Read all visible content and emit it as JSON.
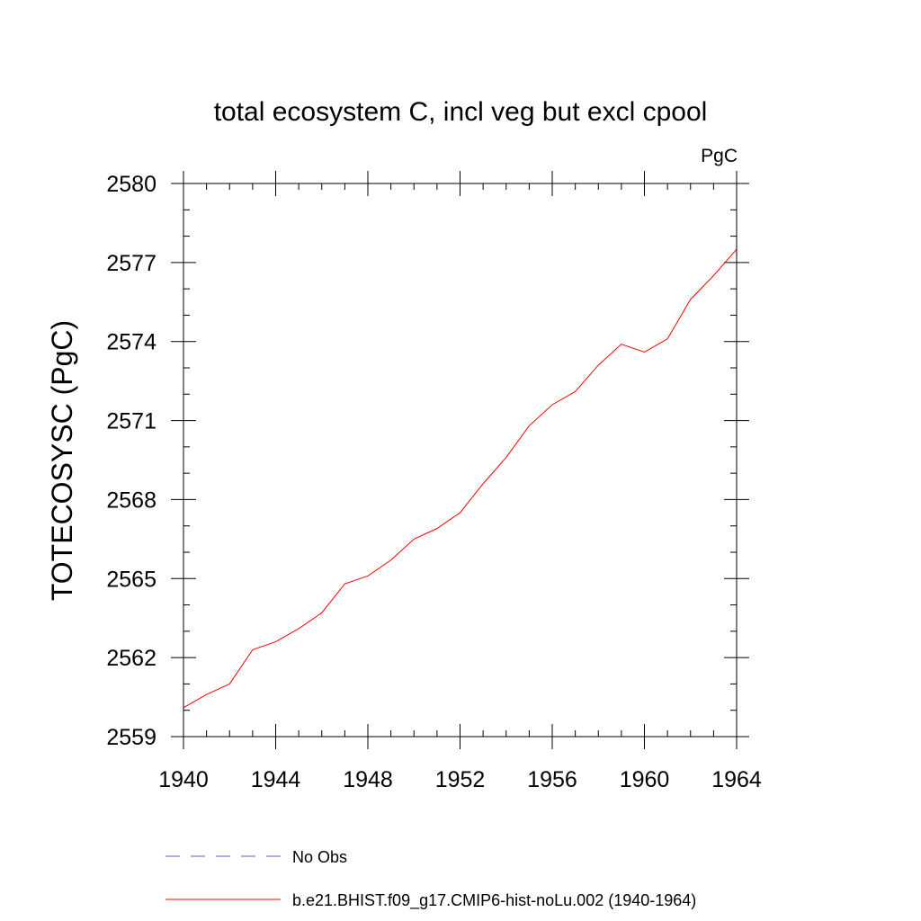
{
  "chart_data": {
    "type": "line",
    "title": "total ecosystem C, incl veg but excl cpool",
    "units": "PgC",
    "ylabel": "TOTECOSYSC  (PgC)",
    "xlabel": "",
    "xlim": [
      1940,
      1964
    ],
    "ylim": [
      2559,
      2580
    ],
    "xticks": [
      1940,
      1944,
      1948,
      1952,
      1956,
      1960,
      1964
    ],
    "yticks": [
      2559,
      2562,
      2565,
      2568,
      2571,
      2574,
      2577,
      2580
    ],
    "xticks_labels": [
      "1940",
      "1944",
      "1948",
      "1952",
      "1956",
      "1960",
      "1964"
    ],
    "yticks_labels": [
      "2559",
      "2562",
      "2565",
      "2568",
      "2571",
      "2574",
      "2577",
      "2580"
    ],
    "grid": false,
    "legend_position": "bottom",
    "series": [
      {
        "name": "b.e21.BHIST.f09_g17.CMIP6-hist-noLu.002 (1940-1964)",
        "color": "#ff0000",
        "dash": "solid",
        "x": [
          1940,
          1941,
          1942,
          1943,
          1944,
          1945,
          1946,
          1947,
          1948,
          1949,
          1950,
          1951,
          1952,
          1953,
          1954,
          1955,
          1956,
          1957,
          1958,
          1959,
          1960,
          1961,
          1962,
          1963,
          1964
        ],
        "y": [
          2560.1,
          2560.6,
          2561.0,
          2562.3,
          2562.6,
          2563.1,
          2563.7,
          2564.8,
          2565.1,
          2565.7,
          2566.5,
          2566.9,
          2567.5,
          2568.6,
          2569.6,
          2570.8,
          2571.6,
          2572.1,
          2573.1,
          2573.9,
          2573.6,
          2574.1,
          2575.6,
          2576.5,
          2577.5
        ]
      }
    ],
    "legend": [
      {
        "label": "No Obs",
        "color": "#6a5acd",
        "dash": "dashed"
      },
      {
        "label": "b.e21.BHIST.f09_g17.CMIP6-hist-noLu.002 (1940-1964)",
        "color": "#ff0000",
        "dash": "solid"
      }
    ]
  }
}
